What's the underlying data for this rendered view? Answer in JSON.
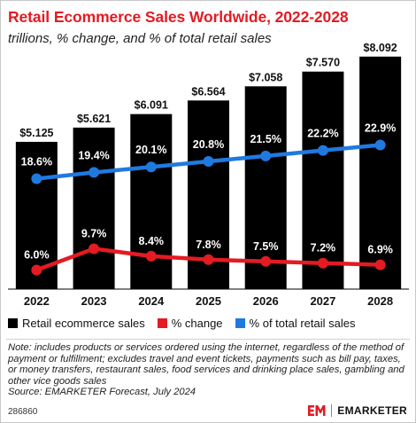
{
  "header": {
    "title": "Retail Ecommerce Sales Worldwide, 2022-2028",
    "subtitle": "trillions, % change, and % of total retail sales"
  },
  "colors": {
    "title": "#e31b23",
    "bars": "#000000",
    "change_line": "#e31b23",
    "share_line": "#1f7ae0"
  },
  "chart_data": {
    "type": "bar",
    "categories": [
      "2022",
      "2023",
      "2024",
      "2025",
      "2026",
      "2027",
      "2028"
    ],
    "series": [
      {
        "name": "Retail ecommerce sales",
        "type": "bar",
        "values": [
          5.125,
          5.621,
          6.091,
          6.564,
          7.058,
          7.57,
          8.092
        ],
        "labels": [
          "$5.125",
          "$5.621",
          "$6.091",
          "$6.564",
          "$7.058",
          "$7.570",
          "$8.092"
        ]
      },
      {
        "name": "% change",
        "type": "line",
        "values": [
          6.0,
          9.7,
          8.4,
          7.8,
          7.5,
          7.2,
          6.9
        ],
        "labels": [
          "6.0%",
          "9.7%",
          "8.4%",
          "7.8%",
          "7.5%",
          "7.2%",
          "6.9%"
        ]
      },
      {
        "name": "% of total retail sales",
        "type": "line",
        "values": [
          18.6,
          19.4,
          20.1,
          20.8,
          21.5,
          22.2,
          22.9
        ],
        "labels": [
          "18.6%",
          "19.4%",
          "20.1%",
          "20.8%",
          "21.5%",
          "22.2%",
          "22.9%"
        ]
      }
    ],
    "grid": false,
    "legend_position": "bottom-left"
  },
  "legend": {
    "items": [
      {
        "label": "Retail ecommerce sales",
        "color": "#000000"
      },
      {
        "label": "% change",
        "color": "#e31b23"
      },
      {
        "label": "% of total retail sales",
        "color": "#1f7ae0"
      }
    ]
  },
  "footer": {
    "note": "Note: includes products or services ordered using the internet, regardless of the method of payment or fulfillment; excludes travel and event tickets, payments such as bill pay, taxes, or money transfers, restaurant sales, food services and drinking place sales, gambling and other vice goods sales",
    "source": "Source: EMARKETER Forecast, July 2024",
    "chart_id": "286860",
    "brand": "EMARKETER",
    "brand_icon": "em-logo-icon"
  }
}
